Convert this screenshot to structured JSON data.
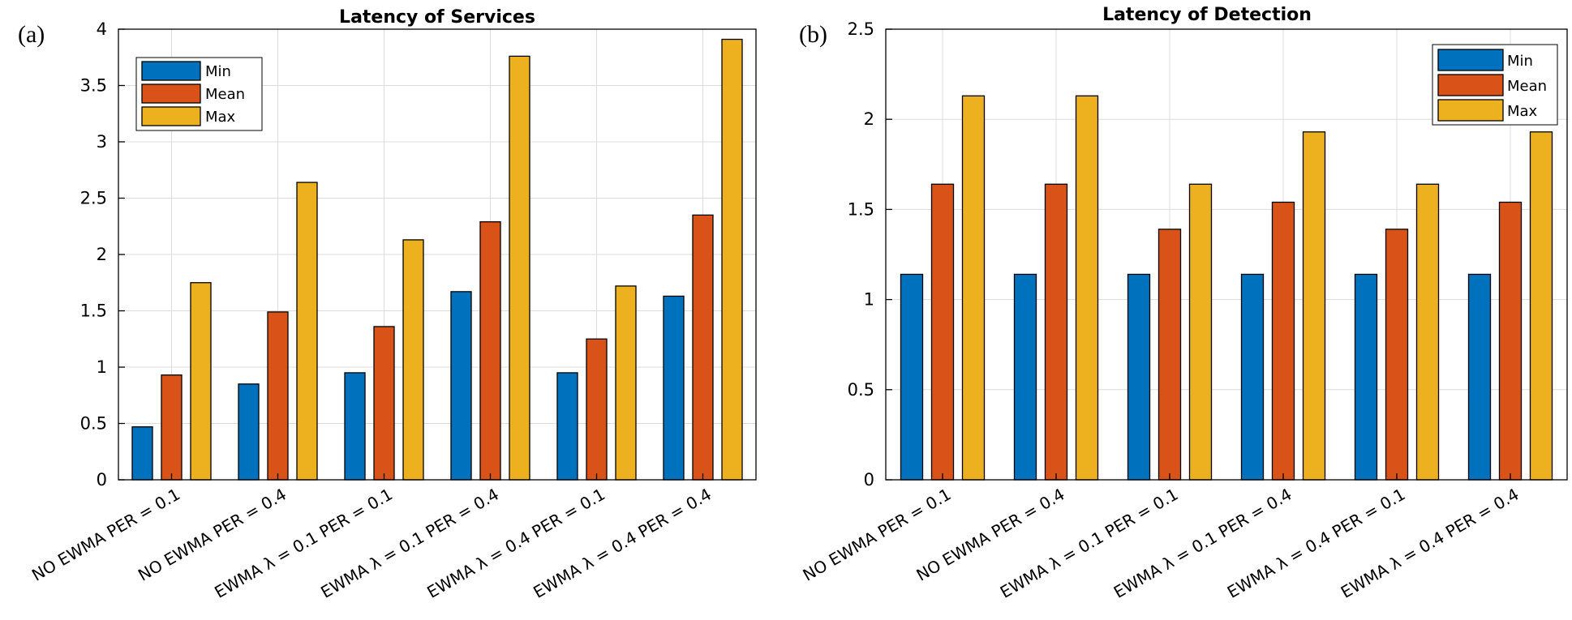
{
  "colors": {
    "Min": "#0072BD",
    "Mean": "#D95319",
    "Max": "#EDB120"
  },
  "chart_data": [
    {
      "type": "bar",
      "panel_label": "(a)",
      "title": "Latency of Services",
      "xlabel": "",
      "ylabel": "",
      "ylim": [
        0,
        4
      ],
      "yticks": [
        "0",
        "0.5",
        "1",
        "1.5",
        "2",
        "2.5",
        "3",
        "3.5",
        "4"
      ],
      "grid": true,
      "legend": "top-left",
      "categories": [
        "NO EWMA PER = 0.1",
        "NO EWMA PER = 0.4",
        "EWMA λ = 0.1 PER = 0.1",
        "EWMA λ = 0.1 PER = 0.4",
        "EWMA λ = 0.4 PER = 0.1",
        "EWMA λ = 0.4 PER = 0.4"
      ],
      "series": [
        {
          "name": "Min",
          "values": [
            0.47,
            0.85,
            0.95,
            1.67,
            0.95,
            1.63
          ]
        },
        {
          "name": "Mean",
          "values": [
            0.93,
            1.49,
            1.36,
            2.29,
            1.25,
            2.35
          ]
        },
        {
          "name": "Max",
          "values": [
            1.75,
            2.64,
            2.13,
            3.76,
            1.72,
            3.91
          ]
        }
      ]
    },
    {
      "type": "bar",
      "panel_label": "(b)",
      "title": "Latency of Detection",
      "xlabel": "",
      "ylabel": "",
      "ylim": [
        0,
        2.5
      ],
      "yticks": [
        "0",
        "0.5",
        "1",
        "1.5",
        "2",
        "2.5"
      ],
      "grid": true,
      "legend": "top-right",
      "categories": [
        "NO EWMA PER = 0.1",
        "NO EWMA PER = 0.4",
        "EWMA λ = 0.1 PER = 0.1",
        "EWMA λ = 0.1 PER = 0.4",
        "EWMA λ = 0.4 PER = 0.1",
        "EWMA λ = 0.4 PER = 0.4"
      ],
      "series": [
        {
          "name": "Min",
          "values": [
            1.14,
            1.14,
            1.14,
            1.14,
            1.14,
            1.14
          ]
        },
        {
          "name": "Mean",
          "values": [
            1.64,
            1.64,
            1.39,
            1.54,
            1.39,
            1.54
          ]
        },
        {
          "name": "Max",
          "values": [
            2.13,
            2.13,
            1.64,
            1.93,
            1.64,
            1.93
          ]
        }
      ]
    }
  ]
}
